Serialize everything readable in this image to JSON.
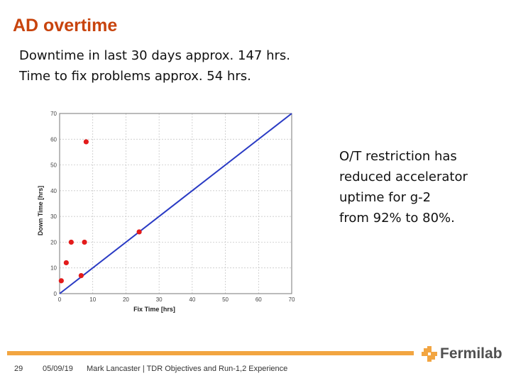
{
  "slide": {
    "title": "AD overtime",
    "body_lines": [
      "Downtime in last 30 days approx. 147 hrs.",
      "Time to fix problems approx. 54 hrs."
    ],
    "side_note_lines": [
      "O/T restriction has",
      "reduced accelerator",
      "uptime for g-2",
      "from 92% to 80%."
    ]
  },
  "chart_data": {
    "type": "scatter",
    "xlabel": "Fix Time [hrs]",
    "ylabel": "Down Time [hrs]",
    "xlim": [
      0,
      70
    ],
    "ylim": [
      0,
      70
    ],
    "xticks": [
      0,
      10,
      20,
      30,
      40,
      50,
      60,
      70
    ],
    "yticks": [
      0,
      10,
      20,
      30,
      40,
      50,
      60,
      70
    ],
    "grid": true,
    "points": [
      {
        "x": 0.5,
        "y": 5
      },
      {
        "x": 2,
        "y": 12
      },
      {
        "x": 3.5,
        "y": 20
      },
      {
        "x": 7.5,
        "y": 20
      },
      {
        "x": 6.5,
        "y": 7
      },
      {
        "x": 8,
        "y": 59
      },
      {
        "x": 24,
        "y": 24
      }
    ],
    "reference_line": {
      "from": [
        0,
        0
      ],
      "to": [
        70,
        70
      ]
    },
    "point_color": "#e31b1b",
    "line_color": "#2a3bc4"
  },
  "footer": {
    "page_number": "29",
    "date": "05/09/19",
    "text": "Mark Lancaster | TDR Objectives and Run-1,2 Experience",
    "logo_text": "Fermilab",
    "accent_color": "#f2a541"
  }
}
